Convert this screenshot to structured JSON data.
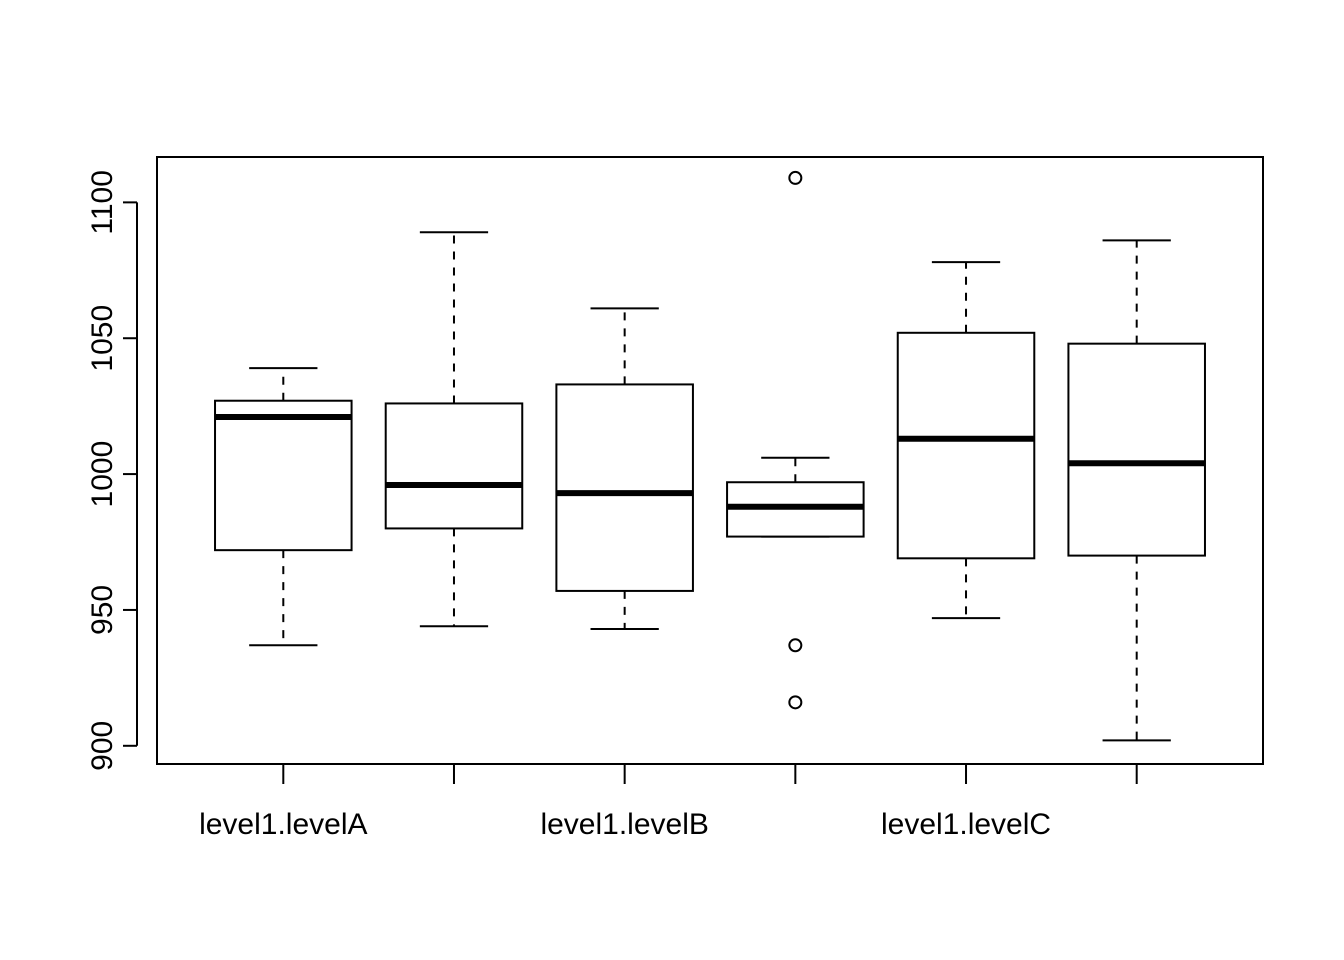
{
  "chart_data": {
    "type": "boxplot",
    "title": "",
    "xlabel": "",
    "ylabel": "",
    "ylim": [
      893.3,
      1116.7
    ],
    "y_ticks": [
      900,
      950,
      1000,
      1050,
      1100
    ],
    "y_tick_labels": [
      "900",
      "950",
      "1000",
      "1050",
      "1100"
    ],
    "x_tick_labels": [
      "level1.levelA",
      "",
      "level1.levelB",
      "",
      "level1.levelC",
      ""
    ],
    "grid": false,
    "legend": "none",
    "boxes": [
      {
        "whisker_low": 937,
        "q1": 972,
        "median": 1021,
        "q3": 1027,
        "whisker_high": 1039,
        "outliers": []
      },
      {
        "whisker_low": 944,
        "q1": 980,
        "median": 996,
        "q3": 1026,
        "whisker_high": 1089,
        "outliers": []
      },
      {
        "whisker_low": 943,
        "q1": 957,
        "median": 993,
        "q3": 1033,
        "whisker_high": 1061,
        "outliers": []
      },
      {
        "whisker_low": 977,
        "q1": 977,
        "median": 988,
        "q3": 997,
        "whisker_high": 1006,
        "outliers": [
          1109,
          937,
          916
        ]
      },
      {
        "whisker_low": 947,
        "q1": 969,
        "median": 1013,
        "q3": 1052,
        "whisker_high": 1078,
        "outliers": []
      },
      {
        "whisker_low": 902,
        "q1": 970,
        "median": 1004,
        "q3": 1048,
        "whisker_high": 1086,
        "outliers": []
      }
    ],
    "colors": {
      "box_fill": "#ffffff",
      "stroke": "#000000"
    }
  }
}
